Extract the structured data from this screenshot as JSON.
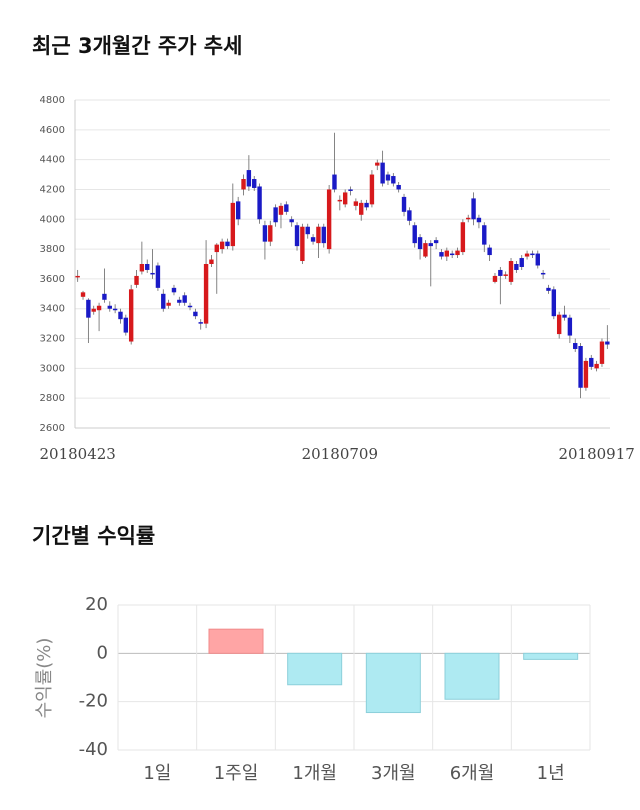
{
  "chart_data": [
    {
      "type": "candlestick",
      "title": "최근 3개월간 주가 추세",
      "categories": [
        "20180423",
        null,
        null,
        null,
        null,
        null,
        null,
        null,
        null,
        null,
        null,
        null,
        null,
        null,
        null,
        null,
        null,
        null,
        null,
        null,
        null,
        null,
        null,
        null,
        null,
        null,
        null,
        null,
        null,
        null,
        null,
        null,
        null,
        null,
        null,
        null,
        null,
        null,
        null,
        null,
        null,
        null,
        null,
        null,
        null,
        null,
        null,
        null,
        null,
        "20180709",
        null,
        null,
        null,
        null,
        null,
        null,
        null,
        null,
        null,
        null,
        null,
        null,
        null,
        null,
        null,
        null,
        null,
        null,
        null,
        null,
        null,
        null,
        null,
        null,
        null,
        null,
        null,
        null,
        null,
        null,
        null,
        null,
        null,
        null,
        null,
        null,
        null,
        null,
        null,
        null,
        null,
        null,
        null,
        null,
        null,
        null,
        null,
        "20180917",
        null,
        null
      ],
      "open": [
        3620,
        3480,
        3460,
        3380,
        3390,
        3500,
        3420,
        3400,
        3380,
        3340,
        3180,
        3560,
        3650,
        3700,
        3640,
        3690,
        3500,
        3420,
        3540,
        3460,
        3490,
        3420,
        3380,
        3310,
        3300,
        3700,
        3780,
        3800,
        3850,
        3820,
        4120,
        4200,
        4330,
        4270,
        4220,
        3960,
        3850,
        4080,
        4030,
        4100,
        4000,
        3960,
        3720,
        3950,
        3880,
        3840,
        3950,
        3800,
        4300,
        4120,
        4100,
        4200,
        4090,
        4030,
        4110,
        4100,
        4360,
        4380,
        4300,
        4290,
        4230,
        4150,
        4060,
        3960,
        3880,
        3750,
        3840,
        3860,
        3780,
        3750,
        3770,
        3760,
        3780,
        4000,
        4140,
        4010,
        3960,
        3810,
        3580,
        3660,
        3620,
        3580,
        3700,
        3740,
        3750,
        3770,
        3770,
        3640,
        3540,
        3530,
        3230,
        3360,
        3340,
        3170,
        3150,
        2870,
        3070,
        3000,
        3030,
        3180
      ],
      "high": [
        3660,
        3520,
        3470,
        3420,
        3440,
        3670,
        3450,
        3430,
        3400,
        3360,
        3560,
        3660,
        3850,
        3730,
        3800,
        3710,
        3530,
        3460,
        3560,
        3480,
        3510,
        3440,
        3400,
        3330,
        3860,
        3760,
        3840,
        3870,
        3870,
        4240,
        4150,
        4300,
        4430,
        4290,
        4240,
        3990,
        3990,
        4100,
        4110,
        4120,
        4020,
        3980,
        3970,
        3970,
        3900,
        3970,
        3970,
        4230,
        4580,
        4160,
        4200,
        4220,
        4140,
        4130,
        4130,
        4330,
        4400,
        4460,
        4320,
        4310,
        4250,
        4170,
        4080,
        3980,
        3900,
        3860,
        3860,
        3880,
        3800,
        3810,
        3790,
        3810,
        4000,
        4030,
        4180,
        4030,
        3980,
        3830,
        3640,
        3680,
        3650,
        3740,
        3720,
        3760,
        3790,
        3790,
        3790,
        3660,
        3560,
        3550,
        3380,
        3420,
        3360,
        3200,
        3170,
        3070,
        3090,
        3050,
        3200,
        3290
      ],
      "low": [
        3580,
        3460,
        3170,
        3360,
        3250,
        3440,
        3380,
        3370,
        3300,
        3220,
        3160,
        3540,
        3630,
        3640,
        3600,
        3520,
        3380,
        3400,
        3490,
        3420,
        3420,
        3390,
        3330,
        3260,
        3270,
        3680,
        3500,
        3770,
        3800,
        3790,
        3960,
        4160,
        4190,
        4190,
        3970,
        3730,
        3820,
        3950,
        3940,
        4030,
        3950,
        3790,
        3700,
        3870,
        3830,
        3740,
        3810,
        3770,
        4180,
        4060,
        4080,
        4160,
        4060,
        3990,
        4060,
        4080,
        4330,
        4220,
        4230,
        4220,
        4180,
        4020,
        3960,
        3810,
        3730,
        3740,
        3550,
        3800,
        3730,
        3720,
        3740,
        3740,
        3760,
        3980,
        3960,
        3940,
        3780,
        3720,
        3570,
        3430,
        3600,
        3560,
        3640,
        3660,
        3730,
        3740,
        3670,
        3600,
        3500,
        3330,
        3200,
        3320,
        3170,
        3110,
        2800,
        2850,
        2990,
        2980,
        3010,
        3130
      ],
      "close": [
        3620,
        3510,
        3340,
        3400,
        3420,
        3460,
        3400,
        3390,
        3330,
        3240,
        3530,
        3620,
        3700,
        3660,
        3630,
        3540,
        3400,
        3440,
        3510,
        3440,
        3440,
        3410,
        3350,
        3300,
        3700,
        3730,
        3830,
        3850,
        3820,
        4110,
        4000,
        4270,
        4220,
        4210,
        4000,
        3850,
        3960,
        3980,
        4090,
        4050,
        3980,
        3820,
        3950,
        3900,
        3850,
        3950,
        3840,
        4200,
        4200,
        4130,
        4180,
        4190,
        4120,
        4110,
        4080,
        4300,
        4380,
        4240,
        4260,
        4240,
        4200,
        4050,
        3990,
        3840,
        3800,
        3840,
        3820,
        3840,
        3750,
        3790,
        3760,
        3790,
        3980,
        4010,
        4000,
        3980,
        3830,
        3760,
        3620,
        3620,
        3630,
        3720,
        3660,
        3680,
        3770,
        3760,
        3690,
        3630,
        3520,
        3350,
        3360,
        3340,
        3220,
        3130,
        2870,
        3050,
        3010,
        3030,
        3180,
        3160
      ],
      "up_color": "#d7191c",
      "down_color": "#1a1ac6",
      "ylim": [
        2600,
        4800
      ],
      "yticks": [
        2600,
        2800,
        3000,
        3200,
        3400,
        3600,
        3800,
        4000,
        4200,
        4400,
        4600,
        4800
      ],
      "grid": true
    },
    {
      "type": "bar",
      "title": "기간별 수익률",
      "y_label": "수익률(%)",
      "categories": [
        "1일",
        "1주일",
        "1개월",
        "3개월",
        "6개월",
        "1년"
      ],
      "values": [
        0,
        10,
        -13,
        -24.5,
        -19,
        -2.5
      ],
      "positive_color": "#ffa5a5",
      "negative_color": "#aeeaf2",
      "ylim": [
        -40,
        20
      ],
      "yticks": [
        -40,
        -20,
        0,
        20
      ],
      "grid": true
    }
  ]
}
